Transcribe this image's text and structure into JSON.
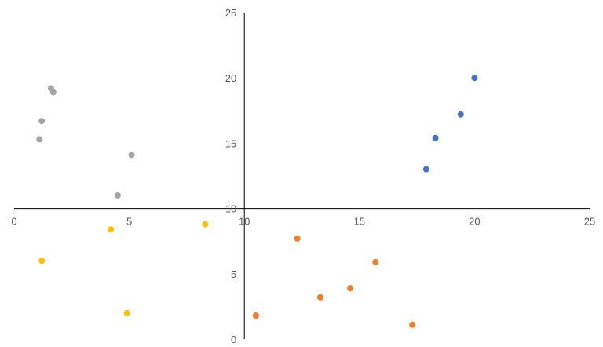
{
  "chart_data": {
    "type": "scatter",
    "title": "",
    "xlabel": "",
    "ylabel": "",
    "xlim": [
      0,
      25
    ],
    "ylim": [
      0,
      25
    ],
    "x_axis_crosses_y_at": 10,
    "y_axis_crosses_x_at": 10,
    "x_ticks": [
      0,
      5,
      10,
      15,
      20,
      25
    ],
    "y_ticks": [
      0,
      5,
      10,
      15,
      20,
      25
    ],
    "x_tick_labels": [
      "0",
      "5",
      "10",
      "15",
      "20",
      "25"
    ],
    "y_tick_labels": [
      "0",
      "5",
      "10",
      "15",
      "20",
      "25"
    ],
    "grid": false,
    "legend": "none",
    "series": [
      {
        "color": "#4472c4",
        "points": [
          {
            "x": 17.9,
            "y": 13.0
          },
          {
            "x": 18.3,
            "y": 15.4
          },
          {
            "x": 19.4,
            "y": 17.2
          },
          {
            "x": 20.0,
            "y": 20.0
          }
        ]
      },
      {
        "color": "#a5a5a5",
        "points": [
          {
            "x": 1.6,
            "y": 19.2
          },
          {
            "x": 1.7,
            "y": 18.9
          },
          {
            "x": 1.2,
            "y": 16.7
          },
          {
            "x": 1.1,
            "y": 15.3
          },
          {
            "x": 5.1,
            "y": 14.1
          },
          {
            "x": 4.5,
            "y": 11.0
          }
        ]
      },
      {
        "color": "#ffc000",
        "points": [
          {
            "x": 4.2,
            "y": 8.4
          },
          {
            "x": 8.3,
            "y": 8.8
          },
          {
            "x": 1.2,
            "y": 6.0
          },
          {
            "x": 4.9,
            "y": 2.0
          }
        ]
      },
      {
        "color": "#ed7d31",
        "points": [
          {
            "x": 12.3,
            "y": 7.7
          },
          {
            "x": 15.7,
            "y": 5.9
          },
          {
            "x": 14.6,
            "y": 3.9
          },
          {
            "x": 13.3,
            "y": 3.2
          },
          {
            "x": 10.5,
            "y": 1.8
          },
          {
            "x": 17.3,
            "y": 1.1
          }
        ]
      }
    ]
  }
}
